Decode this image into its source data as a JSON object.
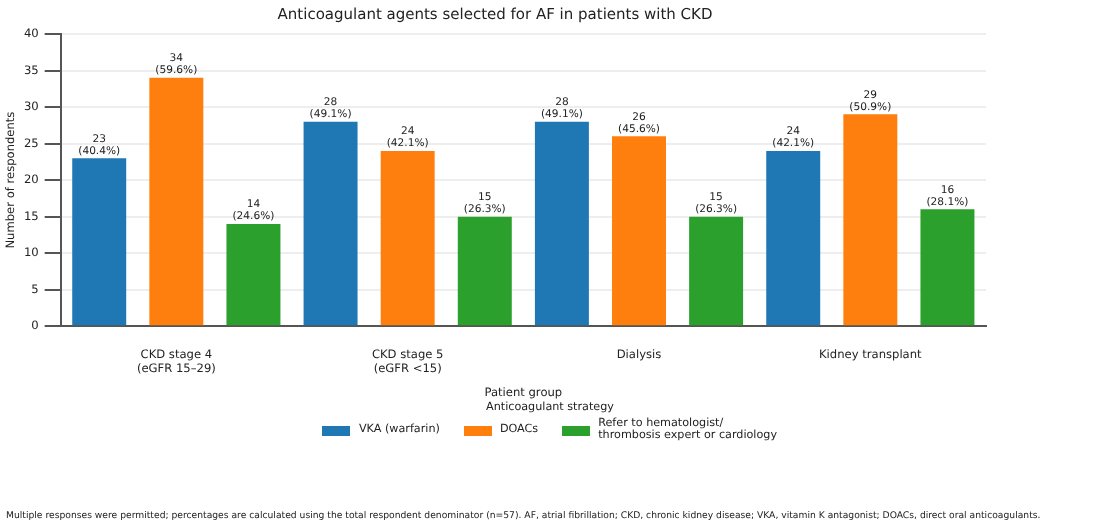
{
  "chart_data": {
    "type": "bar",
    "title": "Anticoagulant agents selected for AF in patients with CKD",
    "xlabel": "Patient group",
    "ylabel": "Number of respondents",
    "legend_title": "Anticoagulant strategy",
    "legend": "bottom",
    "grid": "y",
    "categories": [
      "CKD stage 4\n(eGFR 15–29)",
      "CKD stage 5\n(eGFR <15)",
      "Dialysis",
      "Kidney transplant"
    ],
    "ylim": [
      0,
      40
    ],
    "yticks": [
      0,
      5,
      10,
      15,
      20,
      25,
      30,
      35,
      40
    ],
    "series": [
      {
        "name": "VKA (warfarin)",
        "color": "#1f77b4",
        "values": [
          23,
          28,
          28,
          24
        ],
        "value_labels": [
          "23\n(40.4%)",
          "28\n(49.1%)",
          "28\n(49.1%)",
          "24\n(42.1%)"
        ]
      },
      {
        "name": "DOACs",
        "color": "#ff7f0e",
        "values": [
          34,
          24,
          26,
          29
        ],
        "value_labels": [
          "34\n(59.6%)",
          "24\n(42.1%)",
          "26\n(45.6%)",
          "29\n(50.9%)"
        ]
      },
      {
        "name": "Refer to hematologist/\nthrombosis expert or cardiology",
        "color": "#2ca02c",
        "values": [
          14,
          15,
          15,
          16
        ],
        "value_labels": [
          "14\n(24.6%)",
          "15\n(26.3%)",
          "15\n(26.3%)",
          "16\n(28.1%)"
        ]
      }
    ],
    "annotations": [
      "Multiple responses were permitted; percentages are calculated using the total respondent denominator (n=57). AF, atrial fibrillation; CKD, chronic kidney disease; VKA, vitamin K antagonist; DOACs, direct oral anticoagulants."
    ]
  }
}
